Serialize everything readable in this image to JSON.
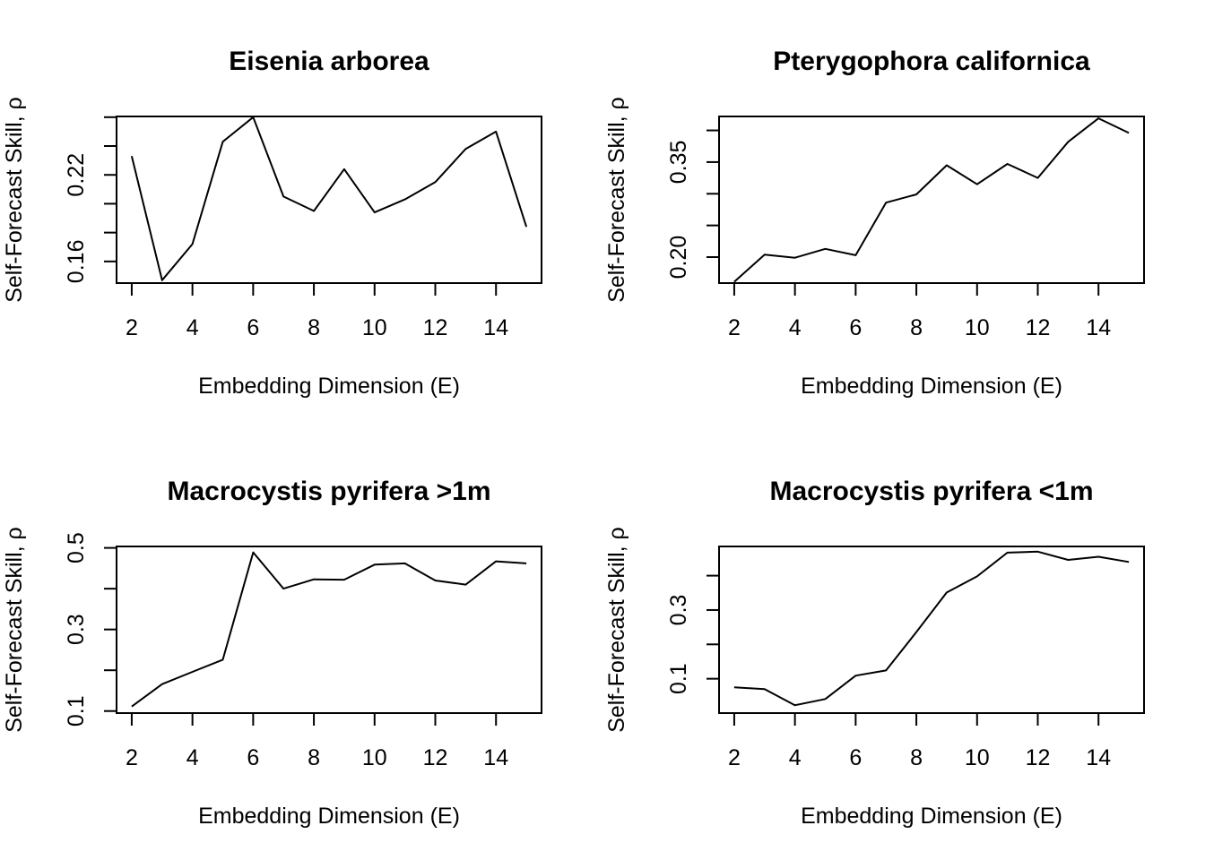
{
  "figure": {
    "background": "#ffffff",
    "line_color": "#000000"
  },
  "chart_data": [
    {
      "type": "line",
      "title": "Eisenia arborea",
      "xlabel": "Embedding Dimension (E)",
      "ylabel": "Self-Forecast Skill, ρ",
      "x": [
        2,
        3,
        4,
        5,
        6,
        7,
        8,
        9,
        10,
        11,
        12,
        13,
        14,
        15
      ],
      "series": [
        {
          "values": [
            0.233,
            0.147,
            0.172,
            0.243,
            0.26,
            0.205,
            0.195,
            0.224,
            0.194,
            0.203,
            0.215,
            0.238,
            0.25,
            0.184
          ]
        }
      ],
      "xlim": [
        1.5,
        15.5
      ],
      "ylim": [
        0.145,
        0.2605
      ],
      "xticks": [
        2,
        4,
        6,
        8,
        10,
        12,
        14
      ],
      "yticks": [
        0.16,
        0.18,
        0.2,
        0.22,
        0.24,
        0.26
      ],
      "ytick_labels": [
        "0.16",
        "",
        "",
        "0.22",
        "",
        ""
      ],
      "grid": false
    },
    {
      "type": "line",
      "title": "Pterygophora californica",
      "xlabel": "Embedding Dimension (E)",
      "ylabel": "Self-Forecast Skill, ρ",
      "x": [
        2,
        3,
        4,
        5,
        6,
        7,
        8,
        9,
        10,
        11,
        12,
        13,
        14,
        15
      ],
      "series": [
        {
          "values": [
            0.161,
            0.204,
            0.199,
            0.213,
            0.203,
            0.286,
            0.299,
            0.345,
            0.315,
            0.347,
            0.325,
            0.382,
            0.419,
            0.396
          ]
        }
      ],
      "xlim": [
        1.5,
        15.5
      ],
      "ylim": [
        0.159,
        0.422
      ],
      "xticks": [
        2,
        4,
        6,
        8,
        10,
        12,
        14
      ],
      "yticks": [
        0.2,
        0.25,
        0.3,
        0.35,
        0.4
      ],
      "ytick_labels": [
        "0.20",
        "",
        "",
        "0.35",
        ""
      ],
      "grid": false
    },
    {
      "type": "line",
      "title": "Macrocystis pyrifera >1m",
      "xlabel": "Embedding Dimension (E)",
      "ylabel": "Self-Forecast Skill, ρ",
      "x": [
        2,
        3,
        4,
        5,
        6,
        7,
        8,
        9,
        10,
        11,
        12,
        13,
        14,
        15
      ],
      "series": [
        {
          "values": [
            0.111,
            0.166,
            0.196,
            0.226,
            0.489,
            0.4,
            0.423,
            0.422,
            0.459,
            0.462,
            0.42,
            0.41,
            0.467,
            0.462
          ]
        }
      ],
      "xlim": [
        1.5,
        15.5
      ],
      "ylim": [
        0.095,
        0.5035
      ],
      "xticks": [
        2,
        4,
        6,
        8,
        10,
        12,
        14
      ],
      "yticks": [
        0.1,
        0.2,
        0.3,
        0.4,
        0.5
      ],
      "ytick_labels": [
        "0.1",
        "",
        "0.3",
        "",
        "0.5"
      ],
      "grid": false
    },
    {
      "type": "line",
      "title": "Macrocystis pyrifera <1m",
      "xlabel": "Embedding Dimension (E)",
      "ylabel": "Self-Forecast Skill, ρ",
      "x": [
        2,
        3,
        4,
        5,
        6,
        7,
        8,
        9,
        10,
        11,
        12,
        13,
        14,
        15
      ],
      "series": [
        {
          "values": [
            0.075,
            0.07,
            0.023,
            0.041,
            0.109,
            0.124,
            0.236,
            0.351,
            0.398,
            0.467,
            0.47,
            0.446,
            0.455,
            0.44
          ]
        }
      ],
      "xlim": [
        1.5,
        15.5
      ],
      "ylim": [
        0.0,
        0.485
      ],
      "xticks": [
        2,
        4,
        6,
        8,
        10,
        12,
        14
      ],
      "yticks": [
        0.1,
        0.2,
        0.3,
        0.4
      ],
      "ytick_labels": [
        "0.1",
        "",
        "0.3",
        ""
      ],
      "grid": false
    }
  ]
}
